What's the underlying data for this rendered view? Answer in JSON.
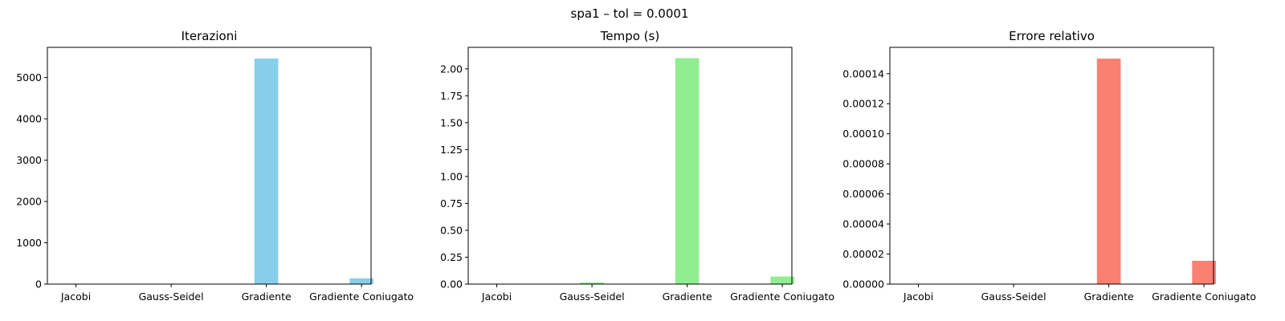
{
  "figure": {
    "suptitle": "spa1 – tol = 0.0001"
  },
  "chart_data": [
    {
      "type": "bar",
      "title": "Iterazioni",
      "categories": [
        "Jacobi",
        "Gauss-Seidel",
        "Gradiente",
        "Gradiente Coniugato"
      ],
      "values": [
        10,
        8,
        5460,
        140
      ],
      "color": "#87CEEB",
      "ylim": [
        0,
        5730
      ],
      "yticks": [
        0,
        1000,
        2000,
        3000,
        4000,
        5000
      ],
      "ytick_labels": [
        "0",
        "1000",
        "2000",
        "3000",
        "4000",
        "5000"
      ],
      "xlabel": "",
      "ylabel": "",
      "grid": false
    },
    {
      "type": "bar",
      "title": "Tempo (s)",
      "categories": [
        "Jacobi",
        "Gauss-Seidel",
        "Gradiente",
        "Gradiente Coniugato"
      ],
      "values": [
        0.003,
        0.015,
        2.1,
        0.07
      ],
      "color": "#90EE90",
      "ylim": [
        0,
        2.2
      ],
      "yticks": [
        0,
        0.25,
        0.5,
        0.75,
        1.0,
        1.25,
        1.5,
        1.75,
        2.0
      ],
      "ytick_labels": [
        "0.00",
        "0.25",
        "0.50",
        "0.75",
        "1.00",
        "1.25",
        "1.50",
        "1.75",
        "2.00"
      ],
      "xlabel": "",
      "ylabel": "",
      "grid": false
    },
    {
      "type": "bar",
      "title": "Errore relativo",
      "categories": [
        "Jacobi",
        "Gauss-Seidel",
        "Gradiente",
        "Gradiente Coniugato"
      ],
      "values": [
        0,
        0,
        0.00015,
        1.55e-05
      ],
      "color": "#FA8072",
      "ylim": [
        0,
        0.0001575
      ],
      "yticks": [
        0,
        2e-05,
        4e-05,
        6e-05,
        8e-05,
        0.0001,
        0.00012,
        0.00014
      ],
      "ytick_labels": [
        "0.00000",
        "0.00002",
        "0.00004",
        "0.00006",
        "0.00008",
        "0.00010",
        "0.00012",
        "0.00014"
      ],
      "xlabel": "",
      "ylabel": "",
      "grid": false
    }
  ]
}
